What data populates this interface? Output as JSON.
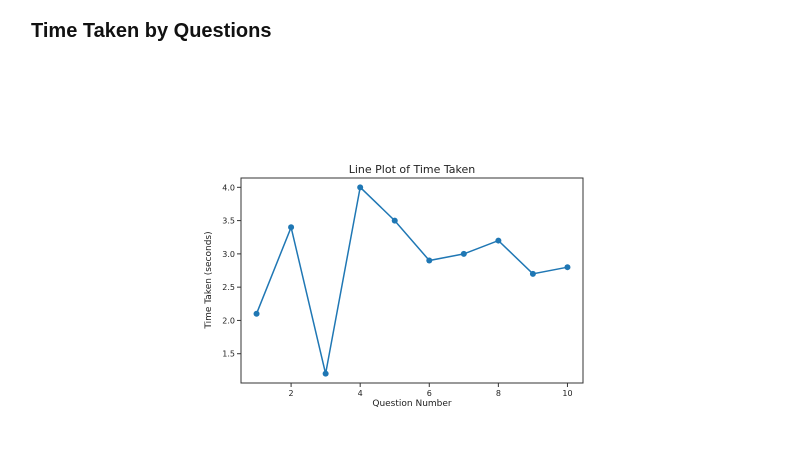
{
  "page": {
    "heading": "Time Taken by Questions"
  },
  "chart_data": {
    "type": "line",
    "title": "Line Plot of Time Taken",
    "xlabel": "Question Number",
    "ylabel": "Time Taken (seconds)",
    "x": [
      1,
      2,
      3,
      4,
      5,
      6,
      7,
      8,
      9,
      10
    ],
    "series": [
      {
        "values": [
          2.1,
          3.4,
          1.2,
          4.0,
          3.5,
          2.9,
          3.0,
          3.2,
          2.7,
          2.8
        ],
        "color": "#1f77b4",
        "marker": "circle"
      }
    ],
    "xticks": [
      2,
      4,
      6,
      8,
      10
    ],
    "yticks": [
      1.5,
      2.0,
      2.5,
      3.0,
      3.5,
      4.0
    ],
    "ytick_labels": [
      "1.5",
      "2.0",
      "2.5",
      "3.0",
      "3.5",
      "4.0"
    ],
    "xlim": [
      0.55,
      10.45
    ],
    "ylim": [
      1.06,
      4.14
    ],
    "grid": false,
    "legend": "none"
  }
}
